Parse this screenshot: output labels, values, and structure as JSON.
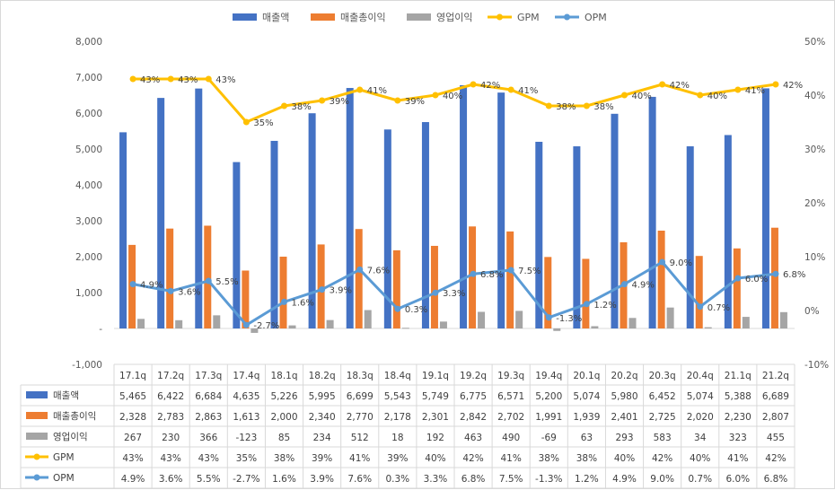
{
  "chart_data": {
    "type": "bar",
    "categories": [
      "17.1q",
      "17.2q",
      "17.3q",
      "17.4q",
      "18.1q",
      "18.2q",
      "18.3q",
      "18.4q",
      "19.1q",
      "19.2q",
      "19.3q",
      "19.4q",
      "20.1q",
      "20.2q",
      "20.3q",
      "20.4q",
      "21.1q",
      "21.2q"
    ],
    "series": [
      {
        "name": "매출액",
        "kind": "bar",
        "axis": "left",
        "color": "#4472c4",
        "values": [
          5465,
          6422,
          6684,
          4635,
          5226,
          5995,
          6699,
          5543,
          5749,
          6775,
          6571,
          5200,
          5074,
          5980,
          6452,
          5074,
          5388,
          6689
        ],
        "labels": [
          "5,465",
          "6,422",
          "6,684",
          "4,635",
          "5,226",
          "5,995",
          "6,699",
          "5,543",
          "5,749",
          "6,775",
          "6,571",
          "5,200",
          "5,074",
          "5,980",
          "6,452",
          "5,074",
          "5,388",
          "6,689"
        ]
      },
      {
        "name": "매출총이익",
        "kind": "bar",
        "axis": "left",
        "color": "#ed7d31",
        "values": [
          2328,
          2783,
          2863,
          1613,
          2000,
          2340,
          2770,
          2178,
          2301,
          2842,
          2702,
          1991,
          1939,
          2401,
          2725,
          2020,
          2230,
          2807
        ],
        "labels": [
          "2,328",
          "2,783",
          "2,863",
          "1,613",
          "2,000",
          "2,340",
          "2,770",
          "2,178",
          "2,301",
          "2,842",
          "2,702",
          "1,991",
          "1,939",
          "2,401",
          "2,725",
          "2,020",
          "2,230",
          "2,807"
        ]
      },
      {
        "name": "영업이익",
        "kind": "bar",
        "axis": "left",
        "color": "#a5a5a5",
        "values": [
          267,
          230,
          366,
          -123,
          85,
          234,
          512,
          18,
          192,
          463,
          490,
          -69,
          63,
          293,
          583,
          34,
          323,
          455
        ],
        "labels": [
          "267",
          "230",
          "366",
          "-123",
          "85",
          "234",
          "512",
          "18",
          "192",
          "463",
          "490",
          "-69",
          "63",
          "293",
          "583",
          "34",
          "323",
          "455"
        ]
      },
      {
        "name": "GPM",
        "kind": "line",
        "axis": "right",
        "color": "#ffc000",
        "values": [
          43,
          43,
          43,
          35,
          38,
          39,
          41,
          39,
          40,
          42,
          41,
          38,
          38,
          40,
          42,
          40,
          41,
          42
        ],
        "labels": [
          "43%",
          "43%",
          "43%",
          "35%",
          "38%",
          "39%",
          "41%",
          "39%",
          "40%",
          "42%",
          "41%",
          "38%",
          "38%",
          "40%",
          "42%",
          "40%",
          "41%",
          "42%"
        ]
      },
      {
        "name": "OPM",
        "kind": "line",
        "axis": "right",
        "color": "#5b9bd5",
        "values": [
          4.9,
          3.6,
          5.5,
          -2.7,
          1.6,
          3.9,
          7.6,
          0.3,
          3.3,
          6.8,
          7.5,
          -1.3,
          1.2,
          4.9,
          9.0,
          0.7,
          6.0,
          6.8
        ],
        "labels": [
          "4.9%",
          "3.6%",
          "5.5%",
          "-2.7%",
          "1.6%",
          "3.9%",
          "7.6%",
          "0.3%",
          "3.3%",
          "6.8%",
          "7.5%",
          "-1.3%",
          "1.2%",
          "4.9%",
          "9.0%",
          "0.7%",
          "6.0%",
          "6.8%"
        ]
      }
    ],
    "left_axis": {
      "ylim": [
        -1000,
        8000
      ],
      "step": 1000,
      "ticks": [
        "8,000",
        "7,000",
        "6,000",
        "5,000",
        "4,000",
        "3,000",
        "2,000",
        "1,000",
        "-",
        "-1,000"
      ]
    },
    "right_axis": {
      "ylim": [
        -10,
        50
      ],
      "step": 10,
      "ticks": [
        "50%",
        "40%",
        "30%",
        "20%",
        "10%",
        "0%",
        "-10%"
      ]
    },
    "legend_position": "top",
    "data_table": true,
    "grid": false
  }
}
